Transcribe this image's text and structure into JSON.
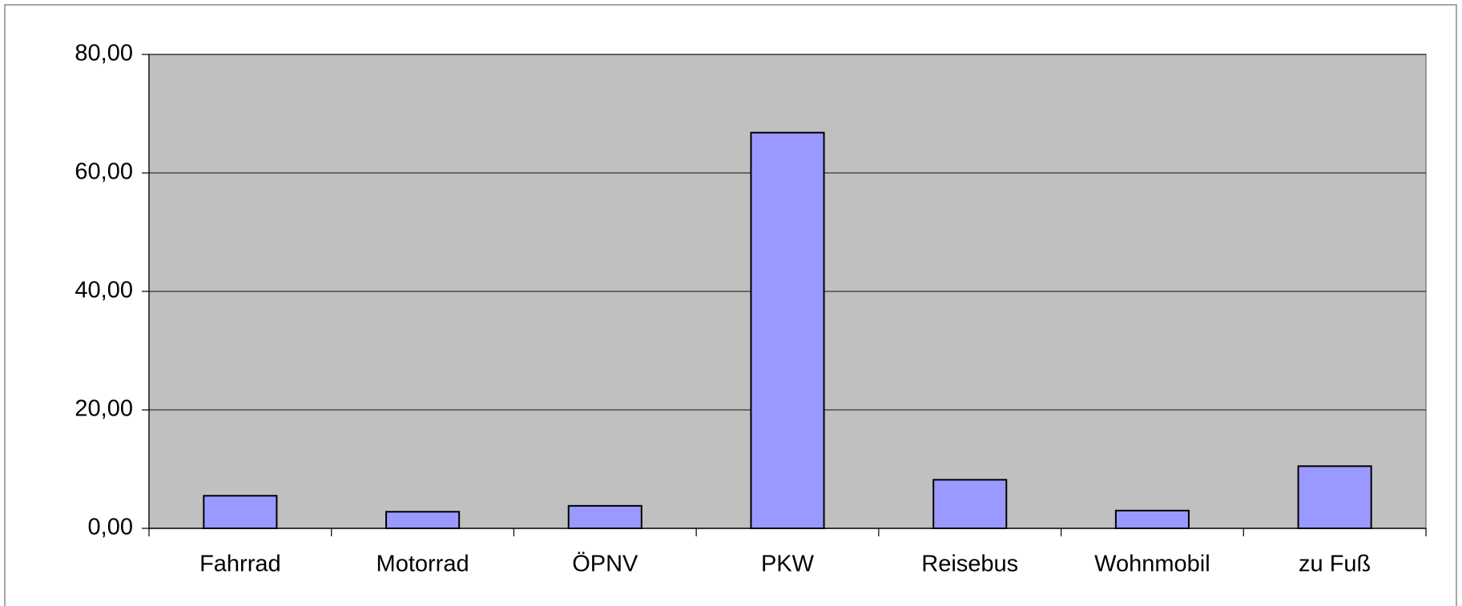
{
  "chart_data": {
    "type": "bar",
    "categories": [
      "Fahrrad",
      "Motorrad",
      "ÖPNV",
      "PKW",
      "Reisebus",
      "Wohnmobil",
      "zu Fuß"
    ],
    "values": [
      5.5,
      2.8,
      3.8,
      66.8,
      8.2,
      3.0,
      10.5
    ],
    "color": "#9999ff",
    "ylim": [
      0,
      80
    ],
    "yticks": [
      {
        "value": 0,
        "label": "0,00"
      },
      {
        "value": 20,
        "label": "20,00"
      },
      {
        "value": 40,
        "label": "40,00"
      },
      {
        "value": 60,
        "label": "60,00"
      },
      {
        "value": 80,
        "label": "80,00"
      }
    ],
    "grid": true
  }
}
